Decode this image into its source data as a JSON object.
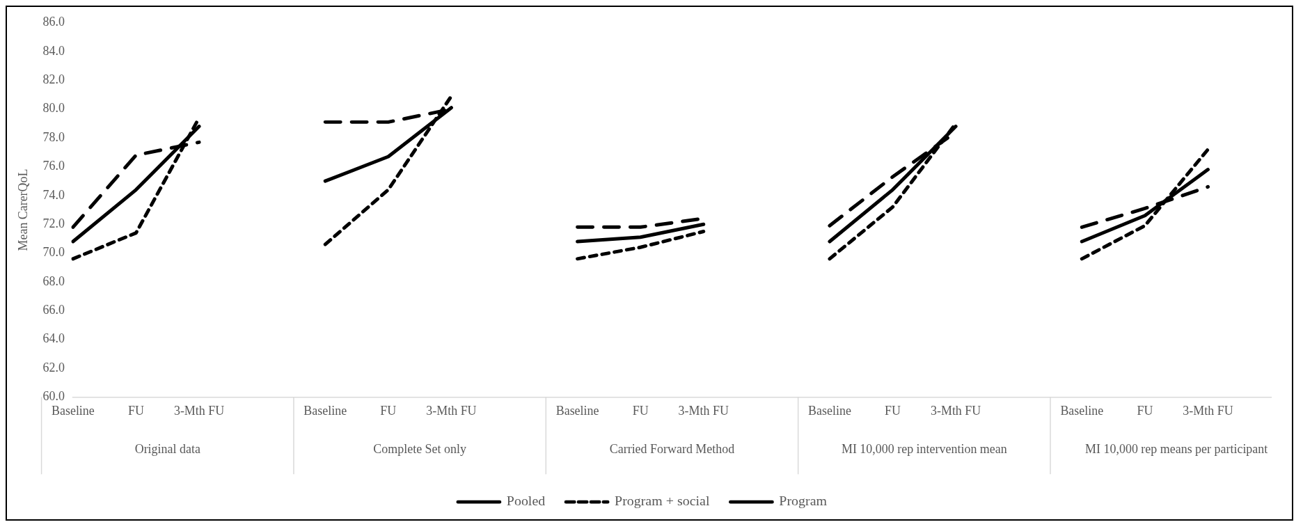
{
  "chart_data": {
    "type": "line",
    "ylabel": "Mean CarerQoL",
    "categories": [
      "Baseline",
      "FU",
      "3-Mth FU",
      null,
      "Baseline",
      "FU",
      "3-Mth FU",
      null,
      "Baseline",
      "FU",
      "3-Mth FU",
      null,
      "Baseline",
      "FU",
      "3-Mth FU",
      null,
      "Baseline",
      "FU",
      "3-Mth FU",
      null
    ],
    "annotations": [
      "Original data",
      "Complete Set only",
      "Carried Forward Method",
      "MI 10,000 rep intervention mean",
      "MI 10,000 rep means per participant"
    ],
    "series": [
      {
        "name": "Pooled",
        "color": "#000000",
        "line_style": "solid",
        "values": [
          70.8,
          74.4,
          78.8,
          null,
          75.0,
          76.7,
          80.1,
          null,
          70.8,
          71.1,
          72.0,
          null,
          70.8,
          74.4,
          78.8,
          null,
          70.8,
          72.6,
          75.8,
          null
        ]
      },
      {
        "name": "Program + social",
        "color": "#000000",
        "line_style": "dashed",
        "values": [
          69.6,
          71.4,
          79.4,
          null,
          70.6,
          74.4,
          80.9,
          null,
          69.6,
          70.4,
          71.5,
          null,
          69.6,
          73.2,
          79.0,
          null,
          69.6,
          71.9,
          77.2,
          null
        ]
      },
      {
        "name": "Program",
        "color": "#000000",
        "line_style": "dashed",
        "values": [
          71.8,
          76.8,
          77.7,
          null,
          79.1,
          79.1,
          80.0,
          null,
          71.8,
          71.8,
          72.4,
          null,
          71.9,
          75.3,
          78.4,
          null,
          71.8,
          73.1,
          74.6,
          null
        ]
      }
    ],
    "ylim": [
      60,
      86
    ],
    "yticks": [
      {
        "value": 60,
        "label": "60.0"
      },
      {
        "value": 62,
        "label": "62.0"
      },
      {
        "value": 64,
        "label": "64.0"
      },
      {
        "value": 66,
        "label": "66.0"
      },
      {
        "value": 68,
        "label": "68.0"
      },
      {
        "value": 70,
        "label": "70.0"
      },
      {
        "value": 72,
        "label": "72.0"
      },
      {
        "value": 74,
        "label": "74.0"
      },
      {
        "value": 76,
        "label": "76.0"
      },
      {
        "value": 78,
        "label": "78.0"
      },
      {
        "value": 80,
        "label": "80.0"
      },
      {
        "value": 82,
        "label": "82.0"
      },
      {
        "value": 84,
        "label": "84.0"
      },
      {
        "value": 86,
        "label": "86.0"
      }
    ],
    "grid": false,
    "legend": "bottom",
    "marker": "none"
  }
}
